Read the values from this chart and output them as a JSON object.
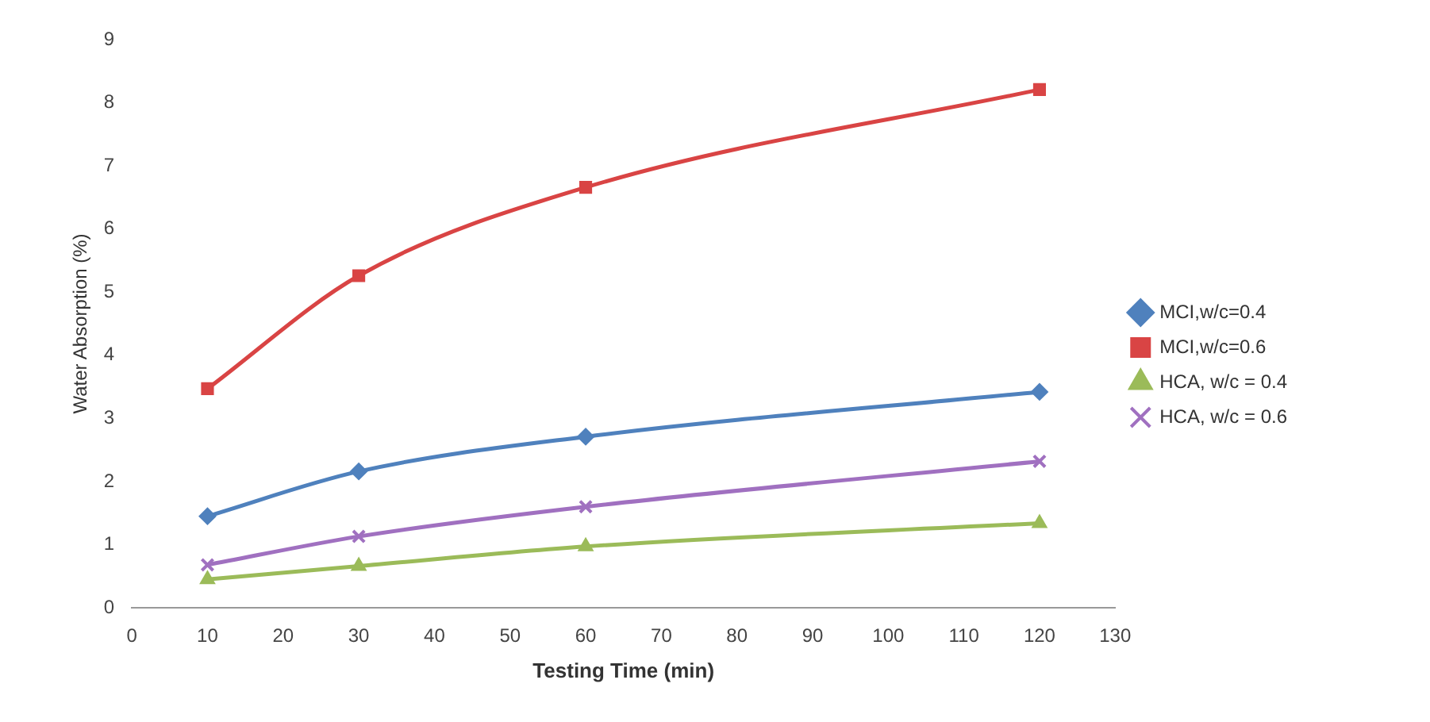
{
  "chart_data": {
    "type": "line",
    "xlabel": "Testing Time (min)",
    "ylabel": "Water Absorption (%)",
    "x": [
      10,
      30,
      60,
      120
    ],
    "series": [
      {
        "name": "MCI,w/c=0.4",
        "color": "#4f81bd",
        "marker": "diamond",
        "values": [
          1.45,
          2.16,
          2.71,
          3.42
        ]
      },
      {
        "name": "MCI,w/c=0.6",
        "color": "#d94444",
        "marker": "square",
        "values": [
          3.47,
          5.26,
          6.66,
          8.21
        ]
      },
      {
        "name": "HCA, w/c = 0.4",
        "color": "#9bbb59",
        "marker": "triangle",
        "values": [
          0.45,
          0.66,
          0.97,
          1.34
        ]
      },
      {
        "name": "HCA, w/c = 0.6",
        "color": "#a070c0",
        "marker": "cross",
        "values": [
          0.68,
          1.13,
          1.6,
          2.32
        ]
      }
    ],
    "xlim": [
      0,
      130
    ],
    "xticks": [
      0,
      10,
      20,
      30,
      40,
      50,
      60,
      70,
      80,
      90,
      100,
      110,
      120,
      130
    ],
    "ylim": [
      0,
      9
    ],
    "yticks": [
      0,
      1,
      2,
      3,
      4,
      5,
      6,
      7,
      8,
      9
    ],
    "grid": false,
    "legend": "right"
  }
}
